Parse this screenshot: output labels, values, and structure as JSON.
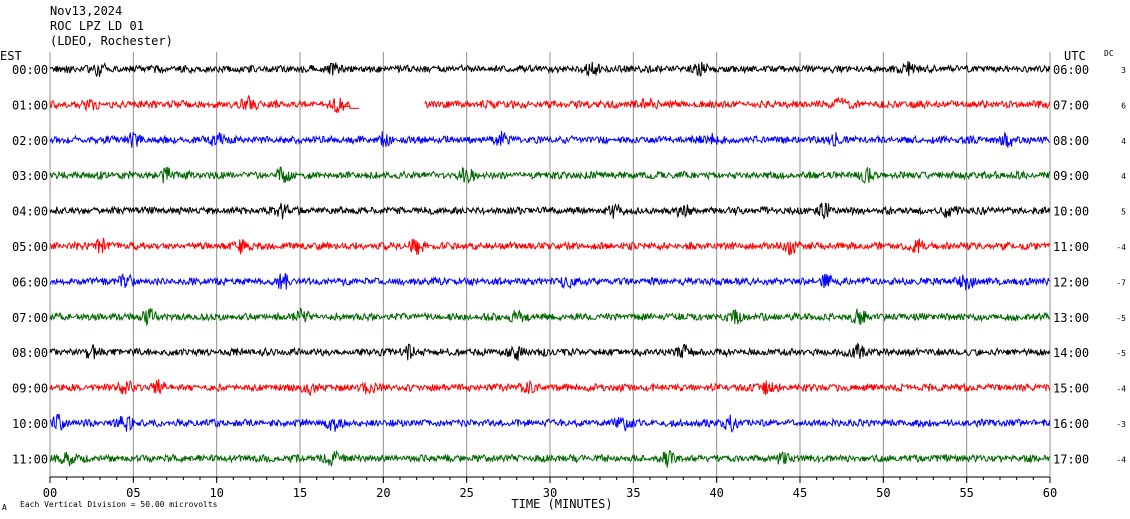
{
  "header": {
    "date": "Nov13,2024",
    "station": "ROC LPZ LD 01",
    "location": "(LDEO, Rochester)"
  },
  "left_zone_label": "EST",
  "right_zone_label": "UTC",
  "dc_label": "DC",
  "footer": {
    "mark": "A",
    "note": "Each Vertical Division =   50.00 microvolts"
  },
  "chart_data": {
    "type": "line",
    "title": "",
    "xlabel": "TIME (MINUTES)",
    "ylabel": "",
    "xlim": [
      0,
      60
    ],
    "x_ticks": [
      "00",
      "05",
      "10",
      "15",
      "20",
      "25",
      "30",
      "35",
      "40",
      "45",
      "50",
      "55",
      "60"
    ],
    "grid": true,
    "series": [
      {
        "est": "00:00",
        "utc": "06:00",
        "dc": "3",
        "color": "#000000",
        "bursts": [
          3,
          17,
          32.5,
          39,
          51.5
        ]
      },
      {
        "est": "01:00",
        "utc": "07:00",
        "dc": "6",
        "color": "#ff0000",
        "bursts": [
          2.5,
          12,
          17.3,
          36,
          47.5
        ],
        "gap": [
          18,
          22.5
        ]
      },
      {
        "est": "02:00",
        "utc": "08:00",
        "dc": "4",
        "color": "#0000ff",
        "bursts": [
          5,
          10,
          20,
          27,
          39.5,
          47,
          57.5
        ]
      },
      {
        "est": "03:00",
        "utc": "09:00",
        "dc": "4",
        "color": "#006600",
        "bursts": [
          7,
          14,
          25,
          49
        ]
      },
      {
        "est": "04:00",
        "utc": "10:00",
        "dc": "5",
        "color": "#000000",
        "bursts": [
          14,
          34,
          38,
          46.5,
          54
        ]
      },
      {
        "est": "05:00",
        "utc": "11:00",
        "dc": "-4",
        "color": "#ff0000",
        "bursts": [
          3,
          11.5,
          22,
          44.5,
          52
        ]
      },
      {
        "est": "06:00",
        "utc": "12:00",
        "dc": "-7",
        "color": "#0000ff",
        "bursts": [
          4.5,
          14,
          31,
          46.5,
          55
        ]
      },
      {
        "est": "07:00",
        "utc": "13:00",
        "dc": "-5",
        "color": "#006600",
        "bursts": [
          6,
          15,
          28,
          41,
          48.5
        ]
      },
      {
        "est": "08:00",
        "utc": "14:00",
        "dc": "-5",
        "color": "#000000",
        "bursts": [
          2.5,
          21.5,
          28,
          38,
          48.5
        ]
      },
      {
        "est": "09:00",
        "utc": "15:00",
        "dc": "-4",
        "color": "#ff0000",
        "bursts": [
          4.5,
          6.5,
          15.5,
          19.2,
          28.5,
          43
        ]
      },
      {
        "est": "10:00",
        "utc": "16:00",
        "dc": "-3",
        "color": "#0000ff",
        "bursts": [
          0.5,
          4.5,
          17,
          34.5,
          40.8
        ]
      },
      {
        "est": "11:00",
        "utc": "17:00",
        "dc": "-4",
        "color": "#006600",
        "bursts": [
          1,
          17,
          37,
          44
        ]
      }
    ]
  }
}
